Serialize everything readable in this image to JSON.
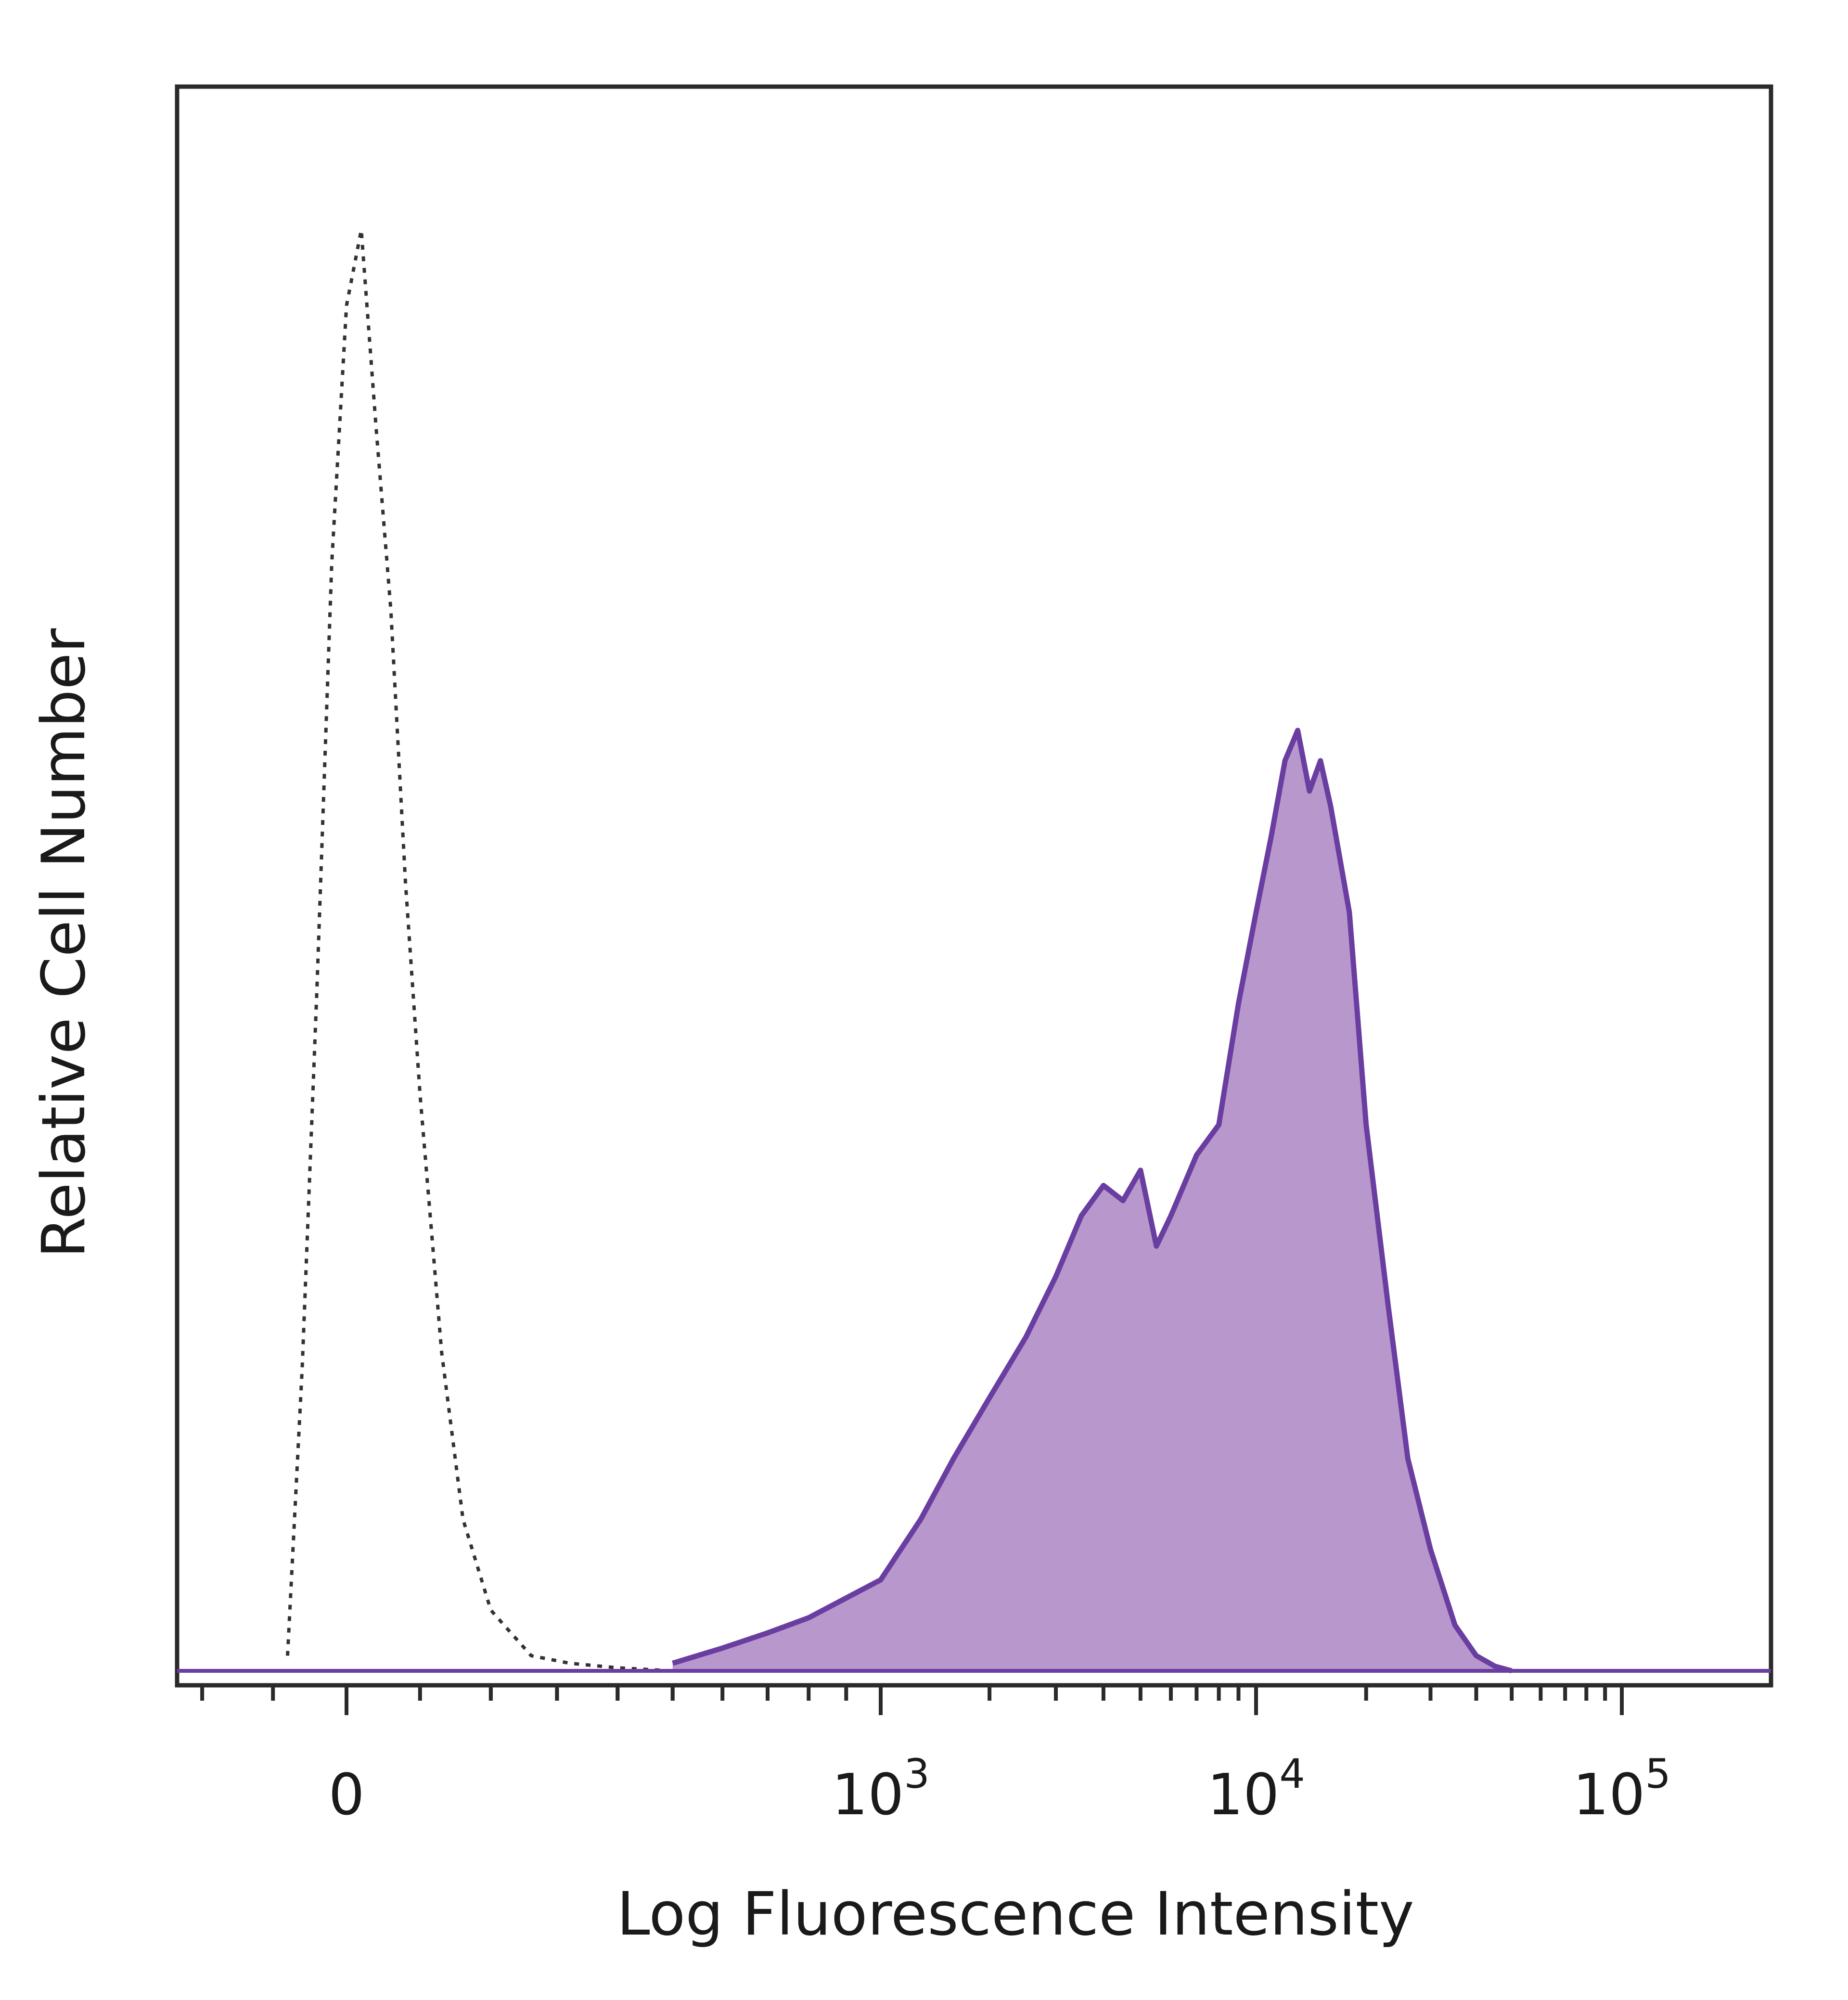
{
  "chart_data": {
    "type": "area",
    "title": "",
    "xlabel": "Log Fluorescence Intensity",
    "ylabel": "Relative Cell Number",
    "x_scale": "biexponential",
    "x_tick_labels": [
      {
        "base": "0",
        "exp": "",
        "value": 0
      },
      {
        "base": "10",
        "exp": "3",
        "value": 1000
      },
      {
        "base": "10",
        "exp": "4",
        "value": 10000
      },
      {
        "base": "10",
        "exp": "5",
        "value": 100000
      }
    ],
    "ylim": [
      0,
      100
    ],
    "grid": false,
    "legend": "none",
    "series": [
      {
        "style": "dotted-outline",
        "color": "#333333",
        "x": [
          -80,
          -60,
          -40,
          -20,
          0,
          20,
          40,
          60,
          80,
          100,
          130,
          160,
          200,
          260,
          320,
          400,
          500
        ],
        "y": [
          1,
          20,
          45,
          73,
          90,
          95,
          82,
          70,
          52,
          38,
          21,
          10,
          4,
          1,
          0.5,
          0.2,
          0
        ]
      },
      {
        "style": "filled",
        "color": "#6a3ea1",
        "fill": "#b898cc",
        "x": [
          500,
          600,
          700,
          800,
          1000,
          1300,
          1600,
          2000,
          2500,
          3000,
          3500,
          4000,
          4500,
          5000,
          5500,
          6000,
          7000,
          8000,
          9000,
          10000,
          11000,
          12000,
          13000,
          14000,
          15000,
          16000,
          18000,
          20000,
          23000,
          26000,
          30000,
          35000,
          40000,
          45000,
          50000
        ],
        "y": [
          0.5,
          1.5,
          2.5,
          3.5,
          6,
          10,
          14,
          18,
          22,
          26,
          30,
          32,
          31,
          33,
          28,
          30,
          34,
          36,
          44,
          50,
          55,
          60,
          62,
          58,
          60,
          57,
          50,
          36,
          24,
          14,
          8,
          3,
          1,
          0.3,
          0
        ]
      }
    ]
  }
}
